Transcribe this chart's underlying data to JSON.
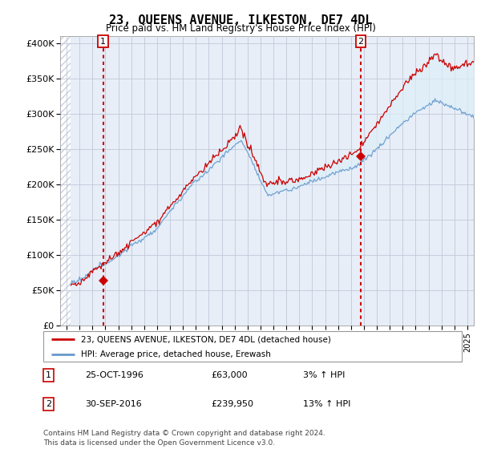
{
  "title": "23, QUEENS AVENUE, ILKESTON, DE7 4DL",
  "subtitle": "Price paid vs. HM Land Registry's House Price Index (HPI)",
  "legend_line1": "23, QUEENS AVENUE, ILKESTON, DE7 4DL (detached house)",
  "legend_line2": "HPI: Average price, detached house, Erewash",
  "footnote": "Contains HM Land Registry data © Crown copyright and database right 2024.\nThis data is licensed under the Open Government Licence v3.0.",
  "table_rows": [
    {
      "num": "1",
      "date": "25-OCT-1996",
      "price": "£63,000",
      "hpi": "3% ↑ HPI"
    },
    {
      "num": "2",
      "date": "30-SEP-2016",
      "price": "£239,950",
      "hpi": "13% ↑ HPI"
    }
  ],
  "sale1_year": 1996.83,
  "sale1_price": 63000,
  "sale2_year": 2016.75,
  "sale2_price": 239950,
  "ylim": [
    0,
    410000
  ],
  "xlim_start": 1993.5,
  "xlim_end": 2025.5,
  "price_line_color": "#cc0000",
  "hpi_line_color": "#6699cc",
  "hpi_fill_color": "#ddeef8",
  "chart_bg_color": "#e8eef8",
  "vline_color": "#cc0000",
  "marker_color": "#cc0000",
  "grid_color": "#c0c8d8",
  "label_box_color": "#cc0000",
  "hatch_color": "#c8d0e0"
}
